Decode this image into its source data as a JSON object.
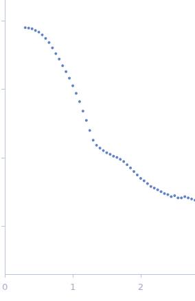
{
  "chart_data": {
    "type": "scatter",
    "log": "y",
    "grid": false,
    "tick_labels": "x",
    "color": "#3a64b8",
    "marker": "circle",
    "xlim": [
      0,
      2.8
    ],
    "xticks": [
      0,
      1,
      2
    ],
    "ylim": [
      0.0002,
      2
    ],
    "yticks": [
      0.001,
      0.01,
      0.1,
      1
    ],
    "x": [
      0.3,
      0.35,
      0.4,
      0.45,
      0.5,
      0.55,
      0.6,
      0.65,
      0.7,
      0.75,
      0.8,
      0.85,
      0.9,
      0.95,
      1.0,
      1.05,
      1.1,
      1.15,
      1.2,
      1.25,
      1.3,
      1.35,
      1.4,
      1.45,
      1.5,
      1.55,
      1.6,
      1.65,
      1.7,
      1.75,
      1.8,
      1.85,
      1.9,
      1.95,
      2.0,
      2.05,
      2.1,
      2.15,
      2.2,
      2.25,
      2.3,
      2.35,
      2.4,
      2.45,
      2.5,
      2.55,
      2.6,
      2.65,
      2.7,
      2.75,
      2.8
    ],
    "values": [
      0.79,
      0.78,
      0.76,
      0.72,
      0.68,
      0.62,
      0.55,
      0.48,
      0.4,
      0.33,
      0.275,
      0.22,
      0.18,
      0.145,
      0.112,
      0.087,
      0.066,
      0.048,
      0.035,
      0.025,
      0.018,
      0.0152,
      0.0138,
      0.0127,
      0.0118,
      0.0112,
      0.0105,
      0.0101,
      0.0095,
      0.0088,
      0.0079,
      0.0071,
      0.0063,
      0.0056,
      0.005,
      0.0046,
      0.0042,
      0.0038,
      0.0036,
      0.0034,
      0.0032,
      0.003,
      0.0029,
      0.0027,
      0.0028,
      0.0026,
      0.0026,
      0.0027,
      0.0026,
      0.0025,
      0.0024
    ]
  }
}
